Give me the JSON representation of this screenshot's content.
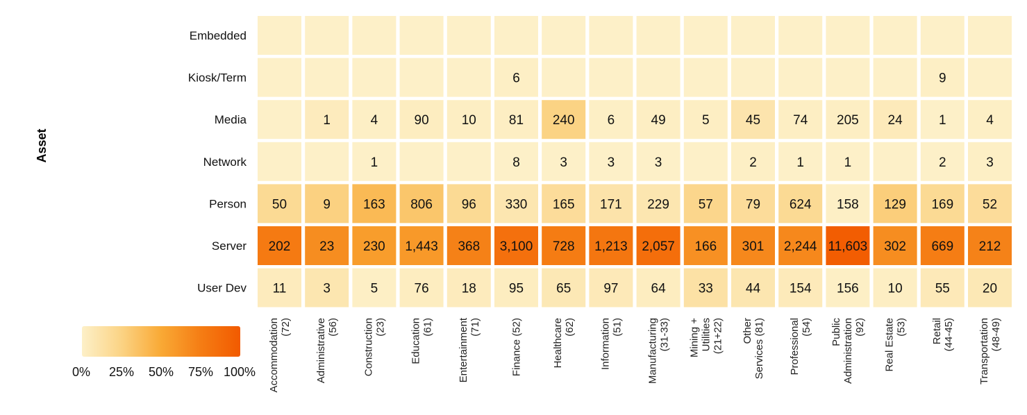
{
  "chart_data": {
    "type": "heatmap",
    "title": "",
    "ylabel": "Asset",
    "xlabel": "",
    "rows": [
      "Embedded",
      "Kiosk/Term",
      "Media",
      "Network",
      "Person",
      "Server",
      "User Dev"
    ],
    "columns": [
      [
        "Accommodation",
        "(72)"
      ],
      [
        "Administrative",
        "(56)"
      ],
      [
        "Construction",
        "(23)"
      ],
      [
        "Education",
        "(61)"
      ],
      [
        "Entertainment",
        "(71)"
      ],
      [
        "Finance (52)"
      ],
      [
        "Healthcare",
        "(62)"
      ],
      [
        "Information",
        "(51)"
      ],
      [
        "Manufacturing",
        "(31-33)"
      ],
      [
        "Mining +",
        "Utilities",
        "(21+22)"
      ],
      [
        "Other",
        "Services (81)"
      ],
      [
        "Professional",
        "(54)"
      ],
      [
        "Public",
        "Administration",
        "(92)"
      ],
      [
        "Real Estate",
        "(53)"
      ],
      [
        "Retail",
        "(44-45)"
      ],
      [
        "Transportation",
        "(48-49)"
      ]
    ],
    "values": [
      [
        "",
        "",
        "",
        "",
        "",
        "",
        "",
        "",
        "",
        "",
        "",
        "",
        "",
        "",
        "",
        ""
      ],
      [
        "",
        "",
        "",
        "",
        "",
        "6",
        "",
        "",
        "",
        "",
        "",
        "",
        "",
        "",
        "9",
        ""
      ],
      [
        "",
        "1",
        "4",
        "90",
        "10",
        "81",
        "240",
        "6",
        "49",
        "5",
        "45",
        "74",
        "205",
        "24",
        "1",
        "4"
      ],
      [
        "",
        "",
        "1",
        "",
        "",
        "8",
        "3",
        "3",
        "3",
        "",
        "2",
        "1",
        "1",
        "",
        "2",
        "3"
      ],
      [
        "50",
        "9",
        "163",
        "806",
        "96",
        "330",
        "165",
        "171",
        "229",
        "57",
        "79",
        "624",
        "158",
        "129",
        "169",
        "52"
      ],
      [
        "202",
        "23",
        "230",
        "1,443",
        "368",
        "3,100",
        "728",
        "1,213",
        "2,057",
        "166",
        "301",
        "2,244",
        "11,603",
        "302",
        "669",
        "212"
      ],
      [
        "11",
        "3",
        "5",
        "76",
        "18",
        "95",
        "65",
        "97",
        "64",
        "33",
        "44",
        "154",
        "156",
        "10",
        "55",
        "20"
      ]
    ],
    "intensity_percent": [
      [
        0,
        0,
        0,
        0,
        0,
        0,
        0,
        0,
        0,
        0,
        0,
        0,
        0,
        0,
        0,
        0
      ],
      [
        0,
        0,
        0,
        0,
        0,
        1,
        0,
        0,
        0,
        0,
        0,
        0,
        0,
        0,
        1,
        0
      ],
      [
        0,
        4,
        1,
        3,
        2,
        2,
        25,
        1,
        2,
        2,
        10,
        2,
        2,
        5,
        0,
        1
      ],
      [
        0,
        0,
        0,
        0,
        0,
        0,
        0,
        0,
        0,
        0,
        1,
        0,
        0,
        0,
        0,
        1
      ],
      [
        19,
        26,
        40,
        33,
        19,
        9,
        17,
        11,
        9,
        22,
        17,
        19,
        1,
        28,
        19,
        17
      ],
      [
        77,
        66,
        57,
        59,
        73,
        84,
        76,
        80,
        86,
        64,
        69,
        69,
        98,
        66,
        75,
        72
      ],
      [
        4,
        9,
        1,
        3,
        4,
        3,
        7,
        6,
        3,
        13,
        9,
        5,
        1,
        2,
        6,
        7
      ]
    ],
    "colorscale": [
      "#fdf0c8",
      "#fbd384",
      "#f9a935",
      "#f57d14",
      "#f25a00"
    ],
    "legend": {
      "ticks": [
        "0%",
        "25%",
        "50%",
        "75%",
        "100%"
      ],
      "placement": "bottom-left"
    }
  }
}
